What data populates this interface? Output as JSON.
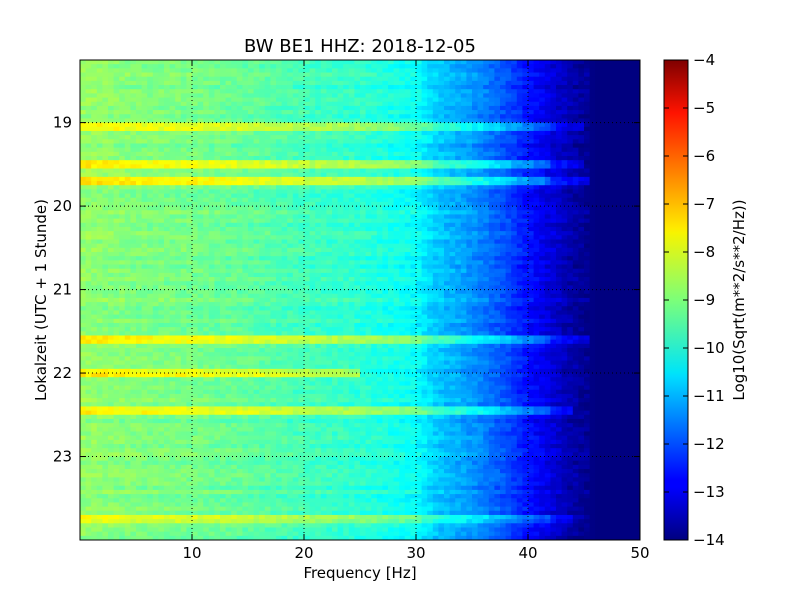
{
  "chart_data": {
    "type": "heatmap",
    "title": "BW BE1 HHZ: 2018-12-05",
    "xlabel": "Frequency [Hz]",
    "ylabel": "Lokalzeit (UTC + 1 Stunde)",
    "xlim": [
      0,
      50
    ],
    "ylim": [
      18.25,
      24.0
    ],
    "y_inverted": true,
    "xticks": [
      10,
      20,
      30,
      40,
      50
    ],
    "yticks": [
      19,
      20,
      21,
      22,
      23
    ],
    "grid": true,
    "colormap": "jet",
    "colorbar": {
      "label": "Log10(Sqrt(m**2/s**2/Hz))",
      "range": [
        -14,
        -4
      ],
      "ticks": [
        -4,
        -5,
        -6,
        -7,
        -8,
        -9,
        -10,
        -11,
        -12,
        -13,
        -14
      ]
    },
    "frequency_profile": {
      "frequency_hz": [
        0,
        5,
        10,
        15,
        20,
        25,
        30,
        32,
        34,
        36,
        38,
        40,
        42,
        44,
        46,
        48,
        50
      ],
      "log_amplitude": [
        -8.8,
        -9.0,
        -9.1,
        -9.3,
        -9.6,
        -9.8,
        -10.2,
        -10.8,
        -11.1,
        -11.5,
        -12.0,
        -12.6,
        -13.1,
        -13.6,
        -14.0,
        -14.0,
        -14.0
      ]
    },
    "high_energy_bands": [
      {
        "time_h": 19.05,
        "log_amplitude_boost": 1.2,
        "max_freq_hz": 45
      },
      {
        "time_h": 19.5,
        "log_amplitude_boost": 1.3,
        "max_freq_hz": 45
      },
      {
        "time_h": 19.7,
        "log_amplitude_boost": 1.4,
        "max_freq_hz": 45.5
      },
      {
        "time_h": 21.6,
        "log_amplitude_boost": 1.3,
        "max_freq_hz": 45.5
      },
      {
        "time_h": 22.0,
        "log_amplitude_boost": 1.3,
        "max_freq_hz": 25
      },
      {
        "time_h": 22.45,
        "log_amplitude_boost": 1.1,
        "max_freq_hz": 44
      },
      {
        "time_h": 23.75,
        "log_amplitude_boost": 0.9,
        "max_freq_hz": 44
      }
    ]
  }
}
